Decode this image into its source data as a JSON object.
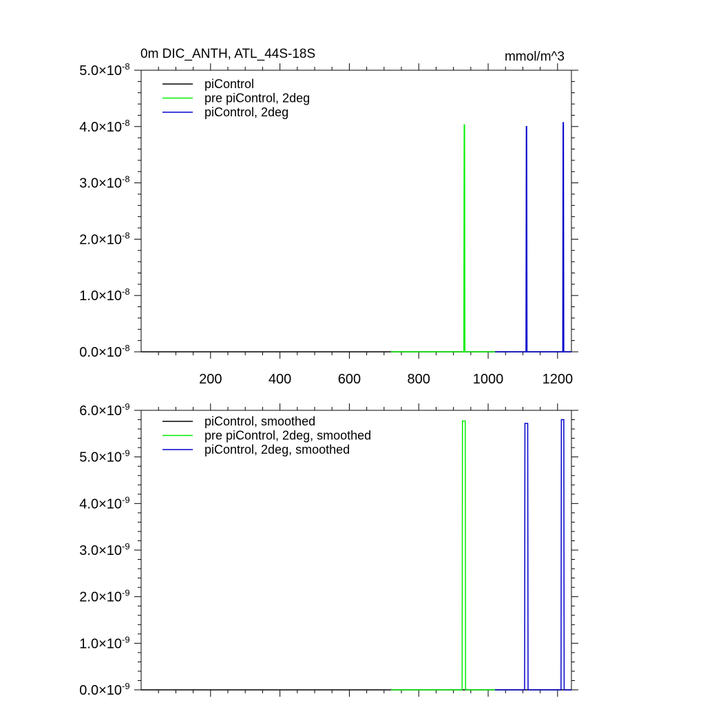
{
  "colors": {
    "piControl": "#000000",
    "pre_piControl_2deg": "#00ee00",
    "piControl_2deg": "#0000cc"
  },
  "chart_data": [
    {
      "type": "line",
      "title": "0m DIC_ANTH, ATL_44S-18S",
      "units": "mmol/m^3",
      "xlim": [
        0,
        1240
      ],
      "ylim": [
        0,
        5e-08
      ],
      "x_ticks": [
        200,
        400,
        600,
        800,
        1000,
        1200
      ],
      "x_tick_labels": [
        "200",
        "400",
        "600",
        "800",
        "1000",
        "1200"
      ],
      "y_ticks": [
        0,
        1e-08,
        2e-08,
        3e-08,
        4e-08,
        5e-08
      ],
      "y_tick_labels": [
        {
          "mantissa": "0.0",
          "exponent": "-8"
        },
        {
          "mantissa": "1.0",
          "exponent": "-8"
        },
        {
          "mantissa": "2.0",
          "exponent": "-8"
        },
        {
          "mantissa": "3.0",
          "exponent": "-8"
        },
        {
          "mantissa": "4.0",
          "exponent": "-8"
        },
        {
          "mantissa": "5.0",
          "exponent": "-8"
        }
      ],
      "legend_position": "top-left",
      "series": [
        {
          "name": "piControl",
          "color": "#000000",
          "x": [
            0,
            1240
          ],
          "y": [
            0,
            0
          ]
        },
        {
          "name": "pre piControl, 2deg",
          "color": "#00ee00",
          "x": [
            720,
            930,
            931,
            932,
            933,
            1020
          ],
          "y": [
            0,
            0,
            4.03e-08,
            4.03e-08,
            0,
            0
          ]
        },
        {
          "name": "piControl, 2deg",
          "color": "#0000cc",
          "x": [
            1020,
            1109,
            1110,
            1111,
            1112,
            1215,
            1216,
            1217,
            1218,
            1240
          ],
          "y": [
            0,
            0,
            4e-08,
            4e-08,
            0,
            0,
            4.07e-08,
            4.07e-08,
            0,
            0
          ]
        }
      ]
    },
    {
      "type": "line",
      "title": "",
      "xlim": [
        0,
        1240
      ],
      "ylim": [
        0,
        6e-09
      ],
      "x_ticks": [
        200,
        400,
        600,
        800,
        1000,
        1200
      ],
      "x_tick_labels": [],
      "y_ticks": [
        0,
        1e-09,
        2e-09,
        3e-09,
        4e-09,
        5e-09,
        6e-09
      ],
      "y_tick_labels": [
        {
          "mantissa": "0.0",
          "exponent": "-9"
        },
        {
          "mantissa": "1.0",
          "exponent": "-9"
        },
        {
          "mantissa": "2.0",
          "exponent": "-9"
        },
        {
          "mantissa": "3.0",
          "exponent": "-9"
        },
        {
          "mantissa": "4.0",
          "exponent": "-9"
        },
        {
          "mantissa": "5.0",
          "exponent": "-9"
        },
        {
          "mantissa": "6.0",
          "exponent": "-9"
        }
      ],
      "legend_position": "top-left",
      "series": [
        {
          "name": "piControl, smoothed",
          "color": "#000000",
          "x": [
            0,
            1240
          ],
          "y": [
            0,
            0
          ]
        },
        {
          "name": "pre piControl, 2deg, smoothed",
          "color": "#00ee00",
          "x": [
            720,
            925,
            926,
            934,
            935,
            1020
          ],
          "y": [
            0,
            0,
            5.77e-09,
            5.77e-09,
            0,
            0
          ]
        },
        {
          "name": "piControl, 2deg, smoothed",
          "color": "#0000cc",
          "x": [
            1020,
            1105,
            1106,
            1114,
            1115,
            1210,
            1211,
            1218,
            1219,
            1240
          ],
          "y": [
            0,
            0,
            5.72e-09,
            5.72e-09,
            0,
            0,
            5.8e-09,
            5.8e-09,
            0,
            0
          ]
        }
      ]
    }
  ]
}
